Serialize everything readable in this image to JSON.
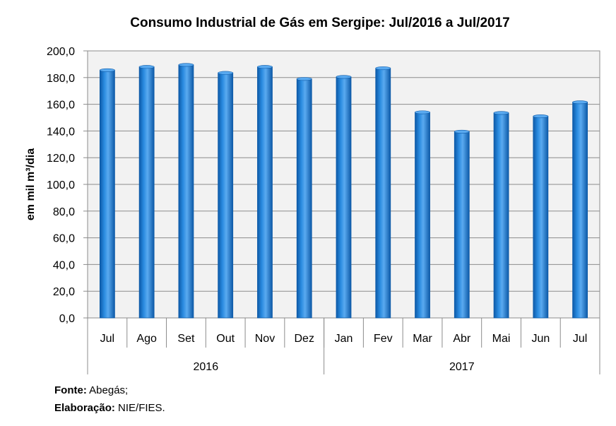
{
  "chart_data": {
    "type": "bar",
    "title": "Consumo  Industrial de Gás em Sergipe: Jul/2016 a Jul/2017",
    "ylabel": "em mil m³/dia",
    "xlabel": "",
    "ylim": [
      0,
      200
    ],
    "ytick_step": 20,
    "ytick_labels": [
      "0,0",
      "20,0",
      "40,0",
      "60,0",
      "80,0",
      "100,0",
      "120,0",
      "140,0",
      "160,0",
      "180,0",
      "200,0"
    ],
    "categories": [
      "Jul",
      "Ago",
      "Set",
      "Out",
      "Nov",
      "Dez",
      "Jan",
      "Fev",
      "Mar",
      "Abr",
      "Mai",
      "Jun",
      "Jul"
    ],
    "values": [
      185.5,
      188.0,
      189.5,
      183.5,
      188.0,
      179.0,
      180.5,
      187.0,
      154.0,
      139.5,
      153.5,
      151.0,
      161.5
    ],
    "groups": [
      {
        "label": "2016",
        "count": 6
      },
      {
        "label": "2017",
        "count": 7
      }
    ],
    "grid": true,
    "legend": "none"
  },
  "footer": {
    "source_label": "Fonte:",
    "source_value": "Abegás;",
    "credit_label": "Elaboração:",
    "credit_value": "NIE/FIES."
  },
  "colors": {
    "bar": "#1f7fd6",
    "bar_dark": "#0d5aa8",
    "bar_light": "#5aaaf0",
    "plot_bg": "#f2f2f2",
    "grid": "#8c8c8c",
    "axis": "#8c8c8c"
  }
}
